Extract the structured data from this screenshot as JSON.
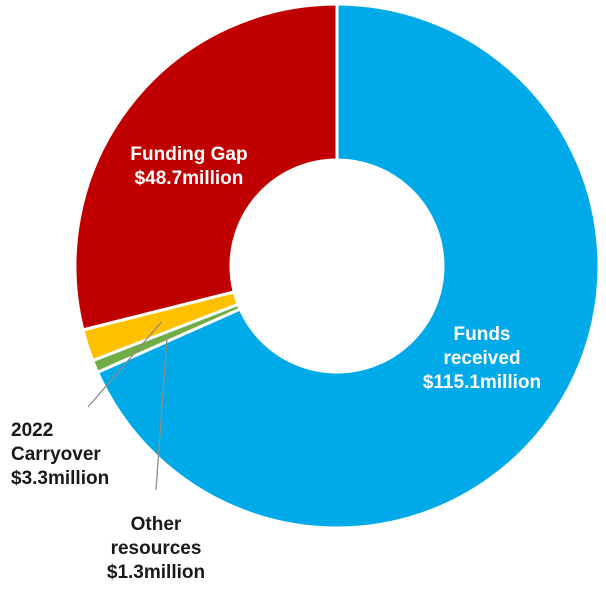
{
  "chart_data": {
    "type": "pie",
    "variant": "donut",
    "title": "",
    "series": [
      {
        "name": "",
        "slices": [
          {
            "key": "funds",
            "label_lines": [
              "Funds",
              "received",
              "$115.1million"
            ],
            "value": 115.1,
            "color": "#00a9e8"
          },
          {
            "key": "other",
            "label_lines": [
              "Other",
              "resources",
              "$1.3million"
            ],
            "value": 1.3,
            "color": "#70ad47"
          },
          {
            "key": "carryover",
            "label_lines": [
              "2022",
              "Carryover",
              "$3.3million"
            ],
            "value": 3.3,
            "color": "#ffc000"
          },
          {
            "key": "gap",
            "label_lines": [
              "Funding Gap",
              "$48.7million"
            ],
            "value": 48.7,
            "color": "#c00000"
          }
        ]
      }
    ],
    "start_angle_deg": 0,
    "direction": "clockwise",
    "legend": "none"
  }
}
